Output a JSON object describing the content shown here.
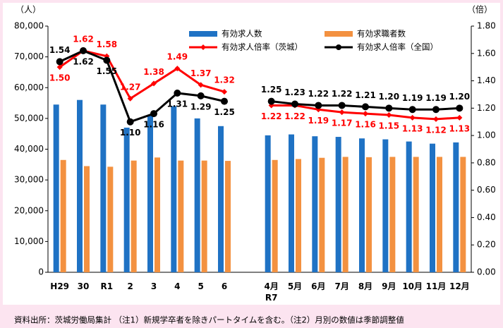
{
  "chart_data": {
    "type": "bar-line",
    "categories": [
      "H29",
      "30",
      "R1",
      "2",
      "3",
      "4",
      "5",
      "6",
      null,
      "4月\nR7",
      "5月",
      "6月",
      "7月",
      "8月",
      "9月",
      "10月",
      "11月",
      "12月"
    ],
    "series": [
      {
        "name": "有効求人数",
        "type": "bar",
        "color": "#1f72c4",
        "values": [
          54500,
          56000,
          54500,
          47000,
          51000,
          54000,
          50000,
          47500,
          null,
          44500,
          44800,
          44200,
          44000,
          43500,
          43200,
          42500,
          41800,
          42200
        ]
      },
      {
        "name": "有効求職者数",
        "type": "bar",
        "color": "#f39140",
        "values": [
          36500,
          34500,
          34300,
          36300,
          37300,
          36300,
          36300,
          36200,
          null,
          36500,
          36800,
          37200,
          37500,
          37400,
          37500,
          37500,
          37500,
          37500
        ]
      },
      {
        "name": "有効求人倍率（茨城）",
        "type": "line",
        "axis": "y2",
        "color": "#ff0000",
        "marker": "diamond",
        "values": [
          1.5,
          1.62,
          1.58,
          1.27,
          1.38,
          1.49,
          1.37,
          1.32,
          null,
          1.22,
          1.22,
          1.19,
          1.17,
          1.16,
          1.15,
          1.13,
          1.12,
          1.13
        ],
        "value_labels": [
          "1.50",
          "1.62",
          "1.58",
          "1.27",
          "1.38",
          "1.49",
          "1.37",
          "1.32",
          null,
          "1.22",
          "1.22",
          "1.19",
          "1.17",
          "1.16",
          "1.15",
          "1.13",
          "1.12",
          "1.13"
        ]
      },
      {
        "name": "有効求人倍率（全国）",
        "type": "line",
        "axis": "y2",
        "color": "#000000",
        "marker": "circle",
        "values": [
          1.54,
          1.62,
          1.55,
          1.1,
          1.16,
          1.31,
          1.29,
          1.25,
          null,
          1.25,
          1.23,
          1.22,
          1.22,
          1.21,
          1.2,
          1.19,
          1.19,
          1.2
        ],
        "value_labels": [
          "1.54",
          "1.62",
          "1.55",
          "1.10",
          "1.16",
          "1.31",
          "1.29",
          "1.25",
          null,
          "1.25",
          "1.23",
          "1.22",
          "1.22",
          "1.21",
          "1.20",
          "1.19",
          "1.19",
          "1.20"
        ]
      }
    ],
    "ylabel": "（人）",
    "y2label": "（倍）",
    "ylim": [
      0,
      80000
    ],
    "yticks": [
      0,
      {
        "value": 10000,
        "label": "10,000"
      },
      {
        "value": 20000,
        "label": "20,000"
      },
      {
        "value": 30000,
        "label": "30,000"
      },
      {
        "value": 40000,
        "label": "40,000"
      },
      {
        "value": 50000,
        "label": "50,000"
      },
      {
        "value": 60000,
        "label": "60,000"
      },
      {
        "value": 70000,
        "label": "70,000"
      },
      {
        "value": 80000,
        "label": "80,000"
      }
    ],
    "y2lim": [
      0,
      1.8
    ],
    "y2ticks": [
      {
        "value": 0,
        "label": "0.00"
      },
      {
        "value": 0.2,
        "label": "0.20"
      },
      {
        "value": 0.4,
        "label": "0.40"
      },
      {
        "value": 0.6,
        "label": "0.60"
      },
      {
        "value": 0.8,
        "label": "0.80"
      },
      {
        "value": 1,
        "label": "1.00"
      },
      {
        "value": 1.2,
        "label": "1.20"
      },
      {
        "value": 1.4,
        "label": "1.40"
      },
      {
        "value": 1.6,
        "label": "1.60"
      },
      {
        "value": 1.8,
        "label": "1.80"
      }
    ],
    "grid": false,
    "legend": "top-right",
    "note": "資料出所：茨城労働局集計 （注1）新規学卒者を除きパートタイムを含む。（注2）月別の数値は季節調整値"
  }
}
